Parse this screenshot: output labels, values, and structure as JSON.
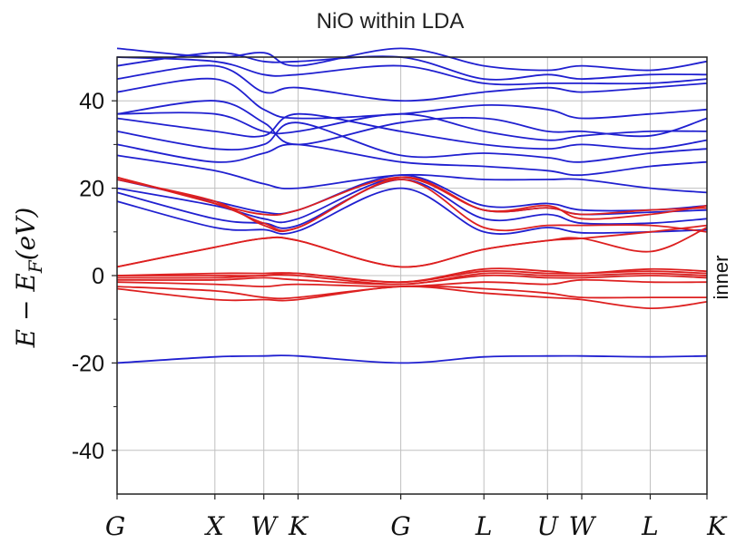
{
  "chart_data": {
    "type": "line",
    "title": "NiO within LDA",
    "ylabel": "E − E_F(eV)",
    "ylabel_parts": {
      "a": "E − E",
      "sub": "F",
      "b": "(eV)"
    },
    "right_label": "inner",
    "ylim": [
      -50,
      50
    ],
    "xlim": [
      0,
      6.03
    ],
    "yticks": [
      40,
      20,
      0,
      -20,
      -40
    ],
    "ytick_labels": [
      "40",
      "20",
      "0",
      "-20",
      "-40"
    ],
    "ytick_minor": [
      30,
      10,
      -10,
      -30
    ],
    "grid": true,
    "high_symmetry": [
      {
        "label": "G",
        "x": 0.0
      },
      {
        "label": "X",
        "x": 1.0
      },
      {
        "label": "W",
        "x": 1.5
      },
      {
        "label": "K",
        "x": 1.85
      },
      {
        "label": "G",
        "x": 2.9
      },
      {
        "label": "L",
        "x": 3.75
      },
      {
        "label": "U",
        "x": 4.4
      },
      {
        "label": "W",
        "x": 4.75
      },
      {
        "label": "L",
        "x": 5.45
      },
      {
        "label": "K",
        "x": 6.03
      }
    ],
    "colors": {
      "outer": "#2020d0",
      "inner": "#dd2020",
      "grid": "#c0c0c0"
    },
    "series": [
      {
        "group": "outer",
        "y": [
          -20,
          -18.6,
          -18.4,
          -18.4,
          -20,
          -18.6,
          -18.4,
          -18.4,
          -18.6,
          -18.4
        ]
      },
      {
        "group": "outer",
        "y": [
          17,
          11,
          10.5,
          10.2,
          20,
          10,
          11,
          9.8,
          10,
          10.5
        ]
      },
      {
        "group": "outer",
        "y": [
          19,
          13,
          12,
          11.5,
          22,
          13,
          14,
          12,
          12,
          13
        ]
      },
      {
        "group": "outer",
        "y": [
          20,
          16,
          13,
          13,
          22.5,
          15,
          15.5,
          14,
          14.5,
          15
        ]
      },
      {
        "group": "outer",
        "y": [
          22,
          17,
          14.5,
          15,
          23,
          16,
          16.5,
          15,
          15,
          16
        ]
      },
      {
        "group": "outer",
        "y": [
          27.5,
          24,
          21,
          20,
          23,
          22,
          22,
          22,
          20,
          19
        ]
      },
      {
        "group": "outer",
        "y": [
          30,
          26,
          28,
          30,
          26,
          25,
          24,
          23,
          25,
          26
        ]
      },
      {
        "group": "outer",
        "y": [
          33,
          29,
          30,
          35,
          27.5,
          28,
          27,
          26,
          28,
          29
        ]
      },
      {
        "group": "outer",
        "y": [
          36,
          33,
          32,
          37,
          33,
          30,
          29,
          30,
          29,
          31
        ]
      },
      {
        "group": "outer",
        "y": [
          37,
          37,
          33,
          33,
          37,
          33,
          31,
          32,
          33,
          33
        ]
      },
      {
        "group": "outer",
        "y": [
          37,
          40,
          35,
          30,
          35,
          36,
          33,
          33,
          32,
          36
        ]
      },
      {
        "group": "outer",
        "y": [
          42,
          45,
          38,
          36,
          37,
          39,
          38,
          36,
          37,
          38
        ]
      },
      {
        "group": "outer",
        "y": [
          45,
          48,
          42,
          43,
          40,
          42,
          43,
          42,
          43,
          44
        ]
      },
      {
        "group": "outer",
        "y": [
          50,
          49,
          46,
          46,
          48,
          44,
          44,
          44,
          44,
          45
        ]
      },
      {
        "group": "outer",
        "y": [
          48,
          51,
          49,
          49,
          50,
          45,
          46,
          45,
          46,
          46
        ]
      },
      {
        "group": "outer",
        "y": [
          52,
          50,
          51,
          48,
          52,
          48,
          47,
          48,
          47,
          49
        ]
      },
      {
        "group": "inner",
        "y": [
          -3,
          -5.5,
          -5.5,
          -5.5,
          -2.5,
          -4,
          -5,
          -5.5,
          -7.5,
          -6
        ]
      },
      {
        "group": "inner",
        "y": [
          -2.5,
          -3.5,
          -5,
          -5,
          -2.5,
          -3,
          -4,
          -5,
          -5,
          -5
        ]
      },
      {
        "group": "inner",
        "y": [
          -1.5,
          -2,
          -2.5,
          -2,
          -2.5,
          -1.5,
          -2,
          -1,
          -1.5,
          -1.5
        ]
      },
      {
        "group": "inner",
        "y": [
          -1,
          -1,
          -0.5,
          -1,
          -2,
          0,
          -0.5,
          -0.5,
          0,
          -0.5
        ]
      },
      {
        "group": "inner",
        "y": [
          -0.5,
          -0.5,
          0,
          0,
          -2,
          0.5,
          0,
          0,
          0.5,
          0
        ]
      },
      {
        "group": "inner",
        "y": [
          0,
          0,
          0,
          0.5,
          -1.5,
          1,
          0.5,
          0.5,
          1,
          0.5
        ]
      },
      {
        "group": "inner",
        "y": [
          0,
          0.5,
          0.5,
          0.5,
          -1.5,
          1.5,
          1,
          0.5,
          1.5,
          1
        ]
      },
      {
        "group": "inner",
        "y": [
          2,
          6.5,
          8.5,
          8,
          2,
          6,
          8,
          8.5,
          10,
          11.5
        ]
      },
      {
        "group": "inner",
        "y": [
          2,
          6.5,
          8.5,
          8,
          2,
          6,
          8,
          8.5,
          5.5,
          11
        ]
      },
      {
        "group": "inner",
        "y": [
          22,
          17,
          11.5,
          11,
          22,
          11,
          11.5,
          11.5,
          11.5,
          10
        ]
      },
      {
        "group": "inner",
        "y": [
          22.5,
          16.5,
          12,
          11,
          22.5,
          15,
          15.5,
          14,
          15,
          15.5
        ]
      },
      {
        "group": "inner",
        "y": [
          22.5,
          16.5,
          14,
          15,
          22.5,
          15,
          16,
          13,
          14,
          16
        ]
      }
    ]
  }
}
